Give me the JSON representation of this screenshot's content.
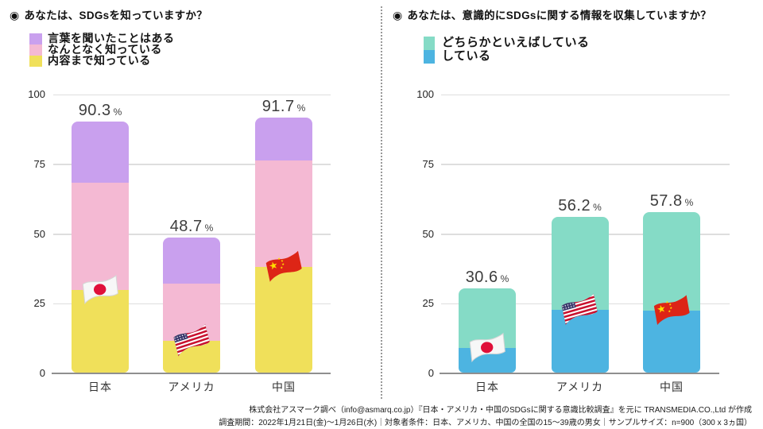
{
  "charts": [
    {
      "bullet": "◉",
      "title": "あなたは、SDGsを知っていますか？",
      "legend": [
        {
          "label": "言葉を聞いたことはある",
          "color": "#c9a0ee"
        },
        {
          "label": "なんとなく知っている",
          "color": "#f4b9d3"
        },
        {
          "label": "内容まで知っている",
          "color": "#f0e05a"
        }
      ],
      "chart_data": {
        "type": "bar",
        "stacked": true,
        "unit": "%",
        "categories": [
          "日本",
          "アメリカ",
          "中国"
        ],
        "series": [
          {
            "name": "内容まで知っている",
            "color": "#f0e05a",
            "values": [
              29.7,
              11.5,
              38.0
            ]
          },
          {
            "name": "なんとなく知っている",
            "color": "#f4b9d3",
            "values": [
              38.3,
              20.5,
              38.0
            ]
          },
          {
            "name": "言葉を聞いたことはある",
            "color": "#c9a0ee",
            "values": [
              22.3,
              16.7,
              15.7
            ]
          }
        ],
        "totals": [
          "90.3",
          "48.7",
          "91.7"
        ],
        "flags": [
          "japan-flag-icon",
          "usa-flag-icon",
          "china-flag-icon"
        ],
        "ylim": [
          0,
          100
        ],
        "yticks": [
          0,
          25,
          50,
          75,
          100
        ],
        "grid": true,
        "legend_position": "top-left"
      }
    },
    {
      "bullet": "◉",
      "title": "あなたは、意識的にSDGsに関する情報を収集していますか？",
      "legend": [
        {
          "label": "どちらかといえばしている",
          "color": "#85dbc6"
        },
        {
          "label": "している",
          "color": "#4db4e1"
        }
      ],
      "chart_data": {
        "type": "bar",
        "stacked": true,
        "unit": "%",
        "categories": [
          "日本",
          "アメリカ",
          "中国"
        ],
        "series": [
          {
            "name": "している",
            "color": "#4db4e1",
            "values": [
              8.8,
              22.4,
              22.2
            ]
          },
          {
            "name": "どちらかといえばしている",
            "color": "#85dbc6",
            "values": [
              21.8,
              33.8,
              35.6
            ]
          }
        ],
        "totals": [
          "30.6",
          "56.2",
          "57.8"
        ],
        "flags": [
          "japan-flag-icon",
          "usa-flag-icon",
          "china-flag-icon"
        ],
        "ylim": [
          0,
          100
        ],
        "yticks": [
          0,
          25,
          50,
          75,
          100
        ],
        "grid": true,
        "legend_position": "top-left"
      }
    }
  ],
  "footer": {
    "line1": "株式会社アスマーク調べ（info@asmarq.co.jp）『日本・アメリカ・中国のSDGsに関する意識比較調査』を元に TRANSMEDIA.CO.,Ltd が作成",
    "line2": "調査期間：2022年1月21日(金)〜1月26日(水)｜対象者条件：日本、アメリカ、中国の全国の15〜39歳の男女｜サンプルサイズ：n=900（300 x 3ヵ国）"
  }
}
